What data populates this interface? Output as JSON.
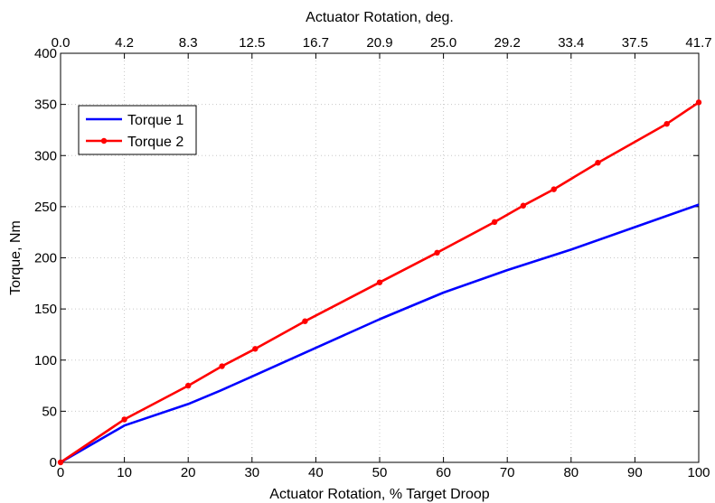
{
  "chart_data": {
    "type": "line",
    "xlabel": "Actuator Rotation, % Target Droop",
    "ylabel": "Torque, Nm",
    "x2label": "Actuator Rotation, deg.",
    "xlim": [
      0,
      100
    ],
    "ylim": [
      0,
      400
    ],
    "x_ticks": [
      "0",
      "10",
      "20",
      "30",
      "40",
      "50",
      "60",
      "70",
      "80",
      "90",
      "100"
    ],
    "x2_ticks": [
      "0.0",
      "4.2",
      "8.3",
      "12.5",
      "16.7",
      "20.9",
      "25.0",
      "29.2",
      "33.4",
      "37.5",
      "41.7"
    ],
    "y_ticks": [
      "0",
      "50",
      "100",
      "150",
      "200",
      "250",
      "300",
      "350",
      "400"
    ],
    "grid": true,
    "legend_position": "upper-left",
    "series": [
      {
        "name": "Torque 1",
        "color": "#0000ff",
        "marker": "none",
        "x": [
          0,
          10,
          20,
          25,
          30,
          40,
          50,
          60,
          70,
          80,
          90,
          100
        ],
        "y": [
          0,
          36,
          57,
          70,
          84,
          112,
          140,
          166,
          188,
          208,
          230,
          252
        ]
      },
      {
        "name": "Torque 2",
        "color": "#ff0000",
        "marker": "dot",
        "x": [
          0,
          10,
          20,
          25.3,
          30.5,
          38.3,
          50,
          59,
          68,
          72.5,
          77.3,
          84.2,
          95,
          100
        ],
        "y": [
          0,
          42,
          75,
          94,
          111,
          138,
          176,
          205,
          235,
          251,
          267,
          293,
          331,
          352
        ]
      }
    ]
  }
}
